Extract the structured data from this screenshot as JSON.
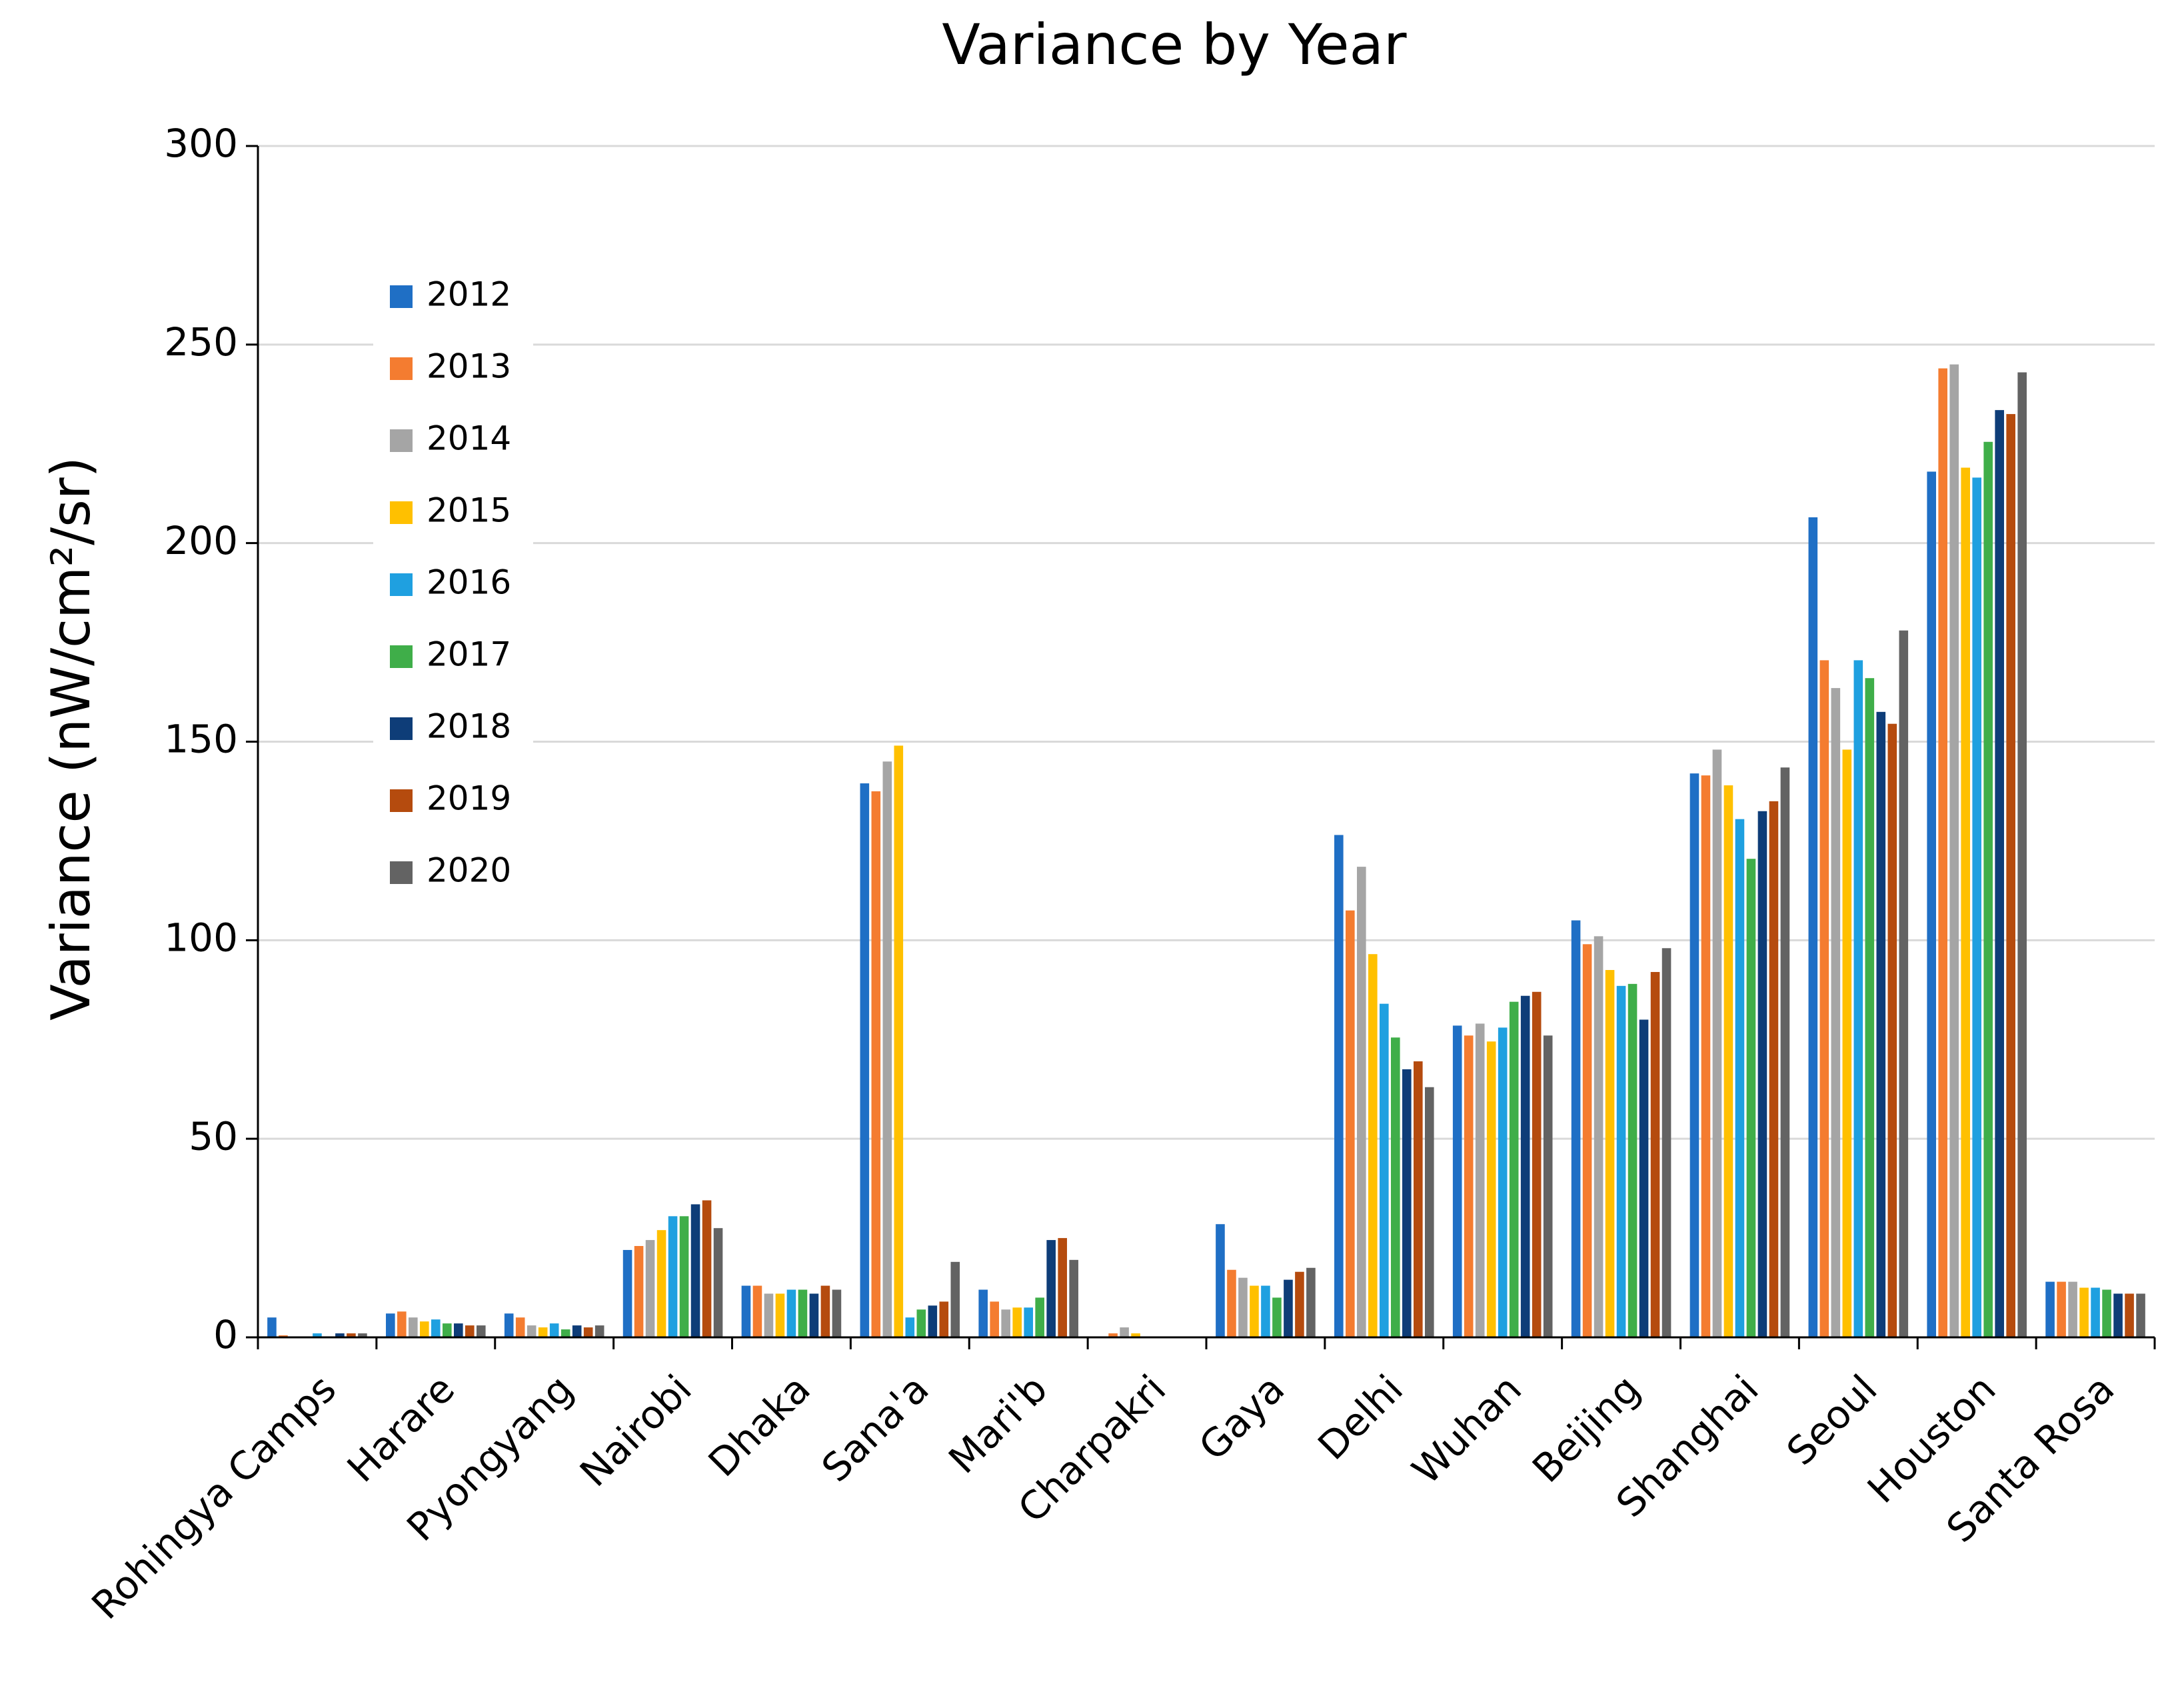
{
  "chart_data": {
    "type": "bar",
    "title": "Variance by Year",
    "y_label": "Variance (nW/cm²/sr)",
    "categories": [
      "Rohingya Camps",
      "Harare",
      "Pyongyang",
      "Nairobi",
      "Dhaka",
      "Sana'a",
      "Mari'b",
      "Charpakri",
      "Gaya",
      "Delhi",
      "Wuhan",
      "Beijing",
      "Shanghai",
      "Seoul",
      "Houston",
      "Santa Rosa"
    ],
    "series": [
      {
        "name": "2012",
        "color": "#1f6fc5",
        "values": [
          5,
          6,
          6,
          22,
          13,
          139.5,
          12,
          0,
          28.5,
          126.5,
          78.5,
          105,
          142,
          206.5,
          218,
          14
        ]
      },
      {
        "name": "2013",
        "color": "#f47c30",
        "values": [
          0.5,
          6.5,
          5,
          23,
          13,
          137.5,
          9,
          1,
          17,
          107.5,
          76,
          99,
          141.5,
          170.5,
          244,
          14
        ]
      },
      {
        "name": "2014",
        "color": "#a5a5a5",
        "values": [
          0,
          5,
          3,
          24.5,
          11,
          145,
          7,
          2.5,
          15,
          118.5,
          79,
          101,
          148,
          163.5,
          245,
          14
        ]
      },
      {
        "name": "2015",
        "color": "#ffc000",
        "values": [
          0,
          4,
          2.5,
          27,
          11,
          149,
          7.5,
          1,
          13,
          96.5,
          74.5,
          92.5,
          139,
          148,
          219,
          12.5
        ]
      },
      {
        "name": "2016",
        "color": "#1fa0e0",
        "values": [
          1,
          4.5,
          3.5,
          30.5,
          12,
          5,
          7.5,
          0,
          13,
          84,
          78,
          88.5,
          130.5,
          170.5,
          216.5,
          12.5
        ]
      },
      {
        "name": "2017",
        "color": "#3fae49",
        "values": [
          0,
          3.5,
          2,
          30.5,
          12,
          7,
          10,
          0,
          10,
          75.5,
          84.5,
          89,
          120.5,
          166,
          225.5,
          12
        ]
      },
      {
        "name": "2018",
        "color": "#0e3d78",
        "values": [
          1,
          3.5,
          3,
          33.5,
          11,
          8,
          24.5,
          0,
          14.5,
          67.5,
          86,
          80,
          132.5,
          157.5,
          233.5,
          11
        ]
      },
      {
        "name": "2019",
        "color": "#b54b0e",
        "values": [
          1,
          3,
          2.5,
          34.5,
          13,
          9,
          25,
          0,
          16.5,
          69.5,
          87,
          92,
          135,
          154.5,
          232.5,
          11
        ]
      },
      {
        "name": "2020",
        "color": "#636363",
        "values": [
          1,
          3,
          3,
          27.5,
          12,
          19,
          19.5,
          0,
          17.5,
          63,
          76,
          98,
          143.5,
          178,
          243,
          11
        ]
      }
    ],
    "ylim": [
      0,
      300
    ],
    "yticks": [
      0,
      50,
      100,
      150,
      200,
      250,
      300
    ],
    "grid": true,
    "legend": "upper left"
  }
}
